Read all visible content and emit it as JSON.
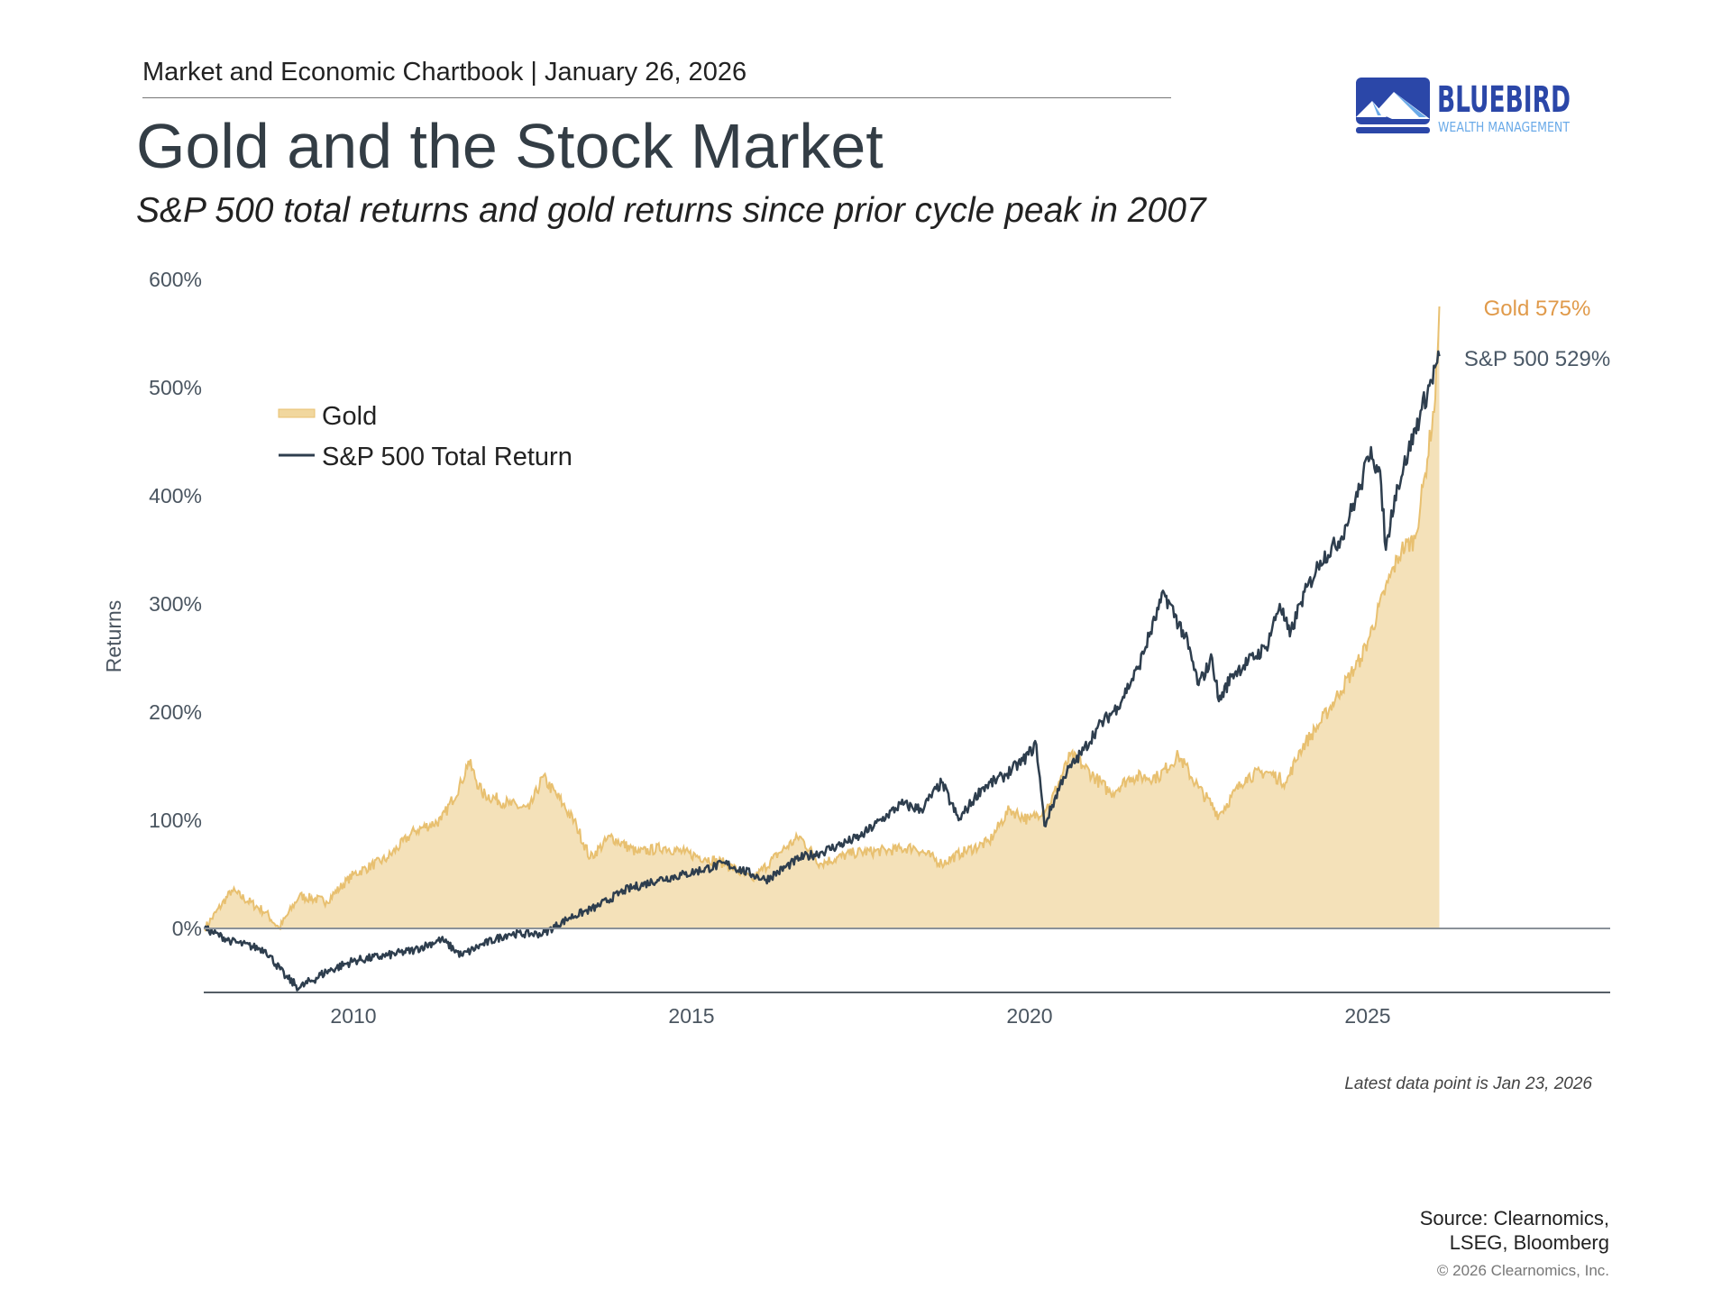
{
  "header": {
    "text": "Market and Economic Chartbook | January 26, 2026"
  },
  "title": "Gold and the Stock Market",
  "subtitle": "S&P 500 total returns and gold returns since prior cycle peak in 2007",
  "logo": {
    "name": "BLUEBIRD",
    "tagline": "WEALTH MANAGEMENT",
    "colors": {
      "primary": "#2b47a8",
      "accent": "#6aaae8"
    }
  },
  "chart_data": {
    "type": "area",
    "ylabel": "Returns",
    "xlabel": "",
    "ylim": [
      -60,
      600
    ],
    "xlim": [
      2007.8,
      2028.3
    ],
    "yticks": [
      "0%",
      "100%",
      "200%",
      "300%",
      "400%",
      "500%",
      "600%"
    ],
    "ytick_values": [
      0,
      100,
      200,
      300,
      400,
      500,
      600
    ],
    "xticks": [
      "2010",
      "2015",
      "2020",
      "2025"
    ],
    "xtick_values": [
      2010,
      2015,
      2020,
      2025
    ],
    "grid": false,
    "legend_position": "top-left",
    "series": [
      {
        "name": "Gold",
        "kind": "area",
        "color": "#e8c070",
        "fill": "#f4e1b9",
        "end_label": "Gold 575%",
        "end_label_color": "#e09a4a",
        "x": [
          2007.8,
          2008.2,
          2008.7,
          2008.9,
          2009.2,
          2009.6,
          2010.0,
          2010.5,
          2010.9,
          2011.3,
          2011.6,
          2011.7,
          2011.9,
          2012.3,
          2012.6,
          2012.8,
          2013.1,
          2013.3,
          2013.5,
          2013.8,
          2014.2,
          2014.6,
          2014.9,
          2015.2,
          2015.5,
          2015.9,
          2016.3,
          2016.6,
          2016.9,
          2017.4,
          2017.9,
          2018.3,
          2018.7,
          2019.0,
          2019.4,
          2019.7,
          2020.0,
          2020.3,
          2020.6,
          2020.8,
          2021.2,
          2021.5,
          2021.9,
          2022.2,
          2022.5,
          2022.8,
          2023.2,
          2023.5,
          2023.8,
          2024.0,
          2024.3,
          2024.6,
          2024.9,
          2025.0,
          2025.3,
          2025.5,
          2025.7,
          2025.85,
          2026.0,
          2026.06
        ],
        "y": [
          0,
          35,
          15,
          0,
          30,
          25,
          50,
          65,
          90,
          100,
          135,
          155,
          125,
          115,
          110,
          140,
          115,
          95,
          65,
          85,
          70,
          75,
          70,
          65,
          60,
          45,
          70,
          85,
          60,
          70,
          72,
          75,
          60,
          70,
          80,
          110,
          100,
          115,
          160,
          150,
          125,
          140,
          140,
          160,
          130,
          105,
          140,
          145,
          135,
          165,
          190,
          220,
          250,
          265,
          320,
          350,
          360,
          420,
          490,
          575
        ]
      },
      {
        "name": "S&P 500 Total Return",
        "kind": "line",
        "color": "#2e3e4e",
        "end_label": "S&P 500 529%",
        "end_label_color": "#4a5866",
        "x": [
          2007.8,
          2008.2,
          2008.7,
          2009.0,
          2009.2,
          2009.6,
          2010.0,
          2010.5,
          2010.9,
          2011.3,
          2011.6,
          2011.9,
          2012.3,
          2012.8,
          2013.2,
          2013.6,
          2014.0,
          2014.5,
          2014.9,
          2015.5,
          2015.9,
          2016.1,
          2016.6,
          2016.9,
          2017.5,
          2017.9,
          2018.1,
          2018.4,
          2018.7,
          2018.95,
          2019.3,
          2019.6,
          2019.9,
          2020.1,
          2020.22,
          2020.5,
          2020.8,
          2021.0,
          2021.3,
          2021.6,
          2021.99,
          2022.3,
          2022.5,
          2022.7,
          2022.8,
          2023.0,
          2023.5,
          2023.7,
          2023.85,
          2024.0,
          2024.3,
          2024.6,
          2024.9,
          2025.05,
          2025.2,
          2025.27,
          2025.4,
          2025.6,
          2025.8,
          2026.06
        ],
        "y": [
          0,
          -12,
          -20,
          -45,
          -55,
          -40,
          -30,
          -25,
          -20,
          -10,
          -25,
          -15,
          -5,
          -5,
          10,
          20,
          35,
          45,
          50,
          60,
          50,
          45,
          65,
          70,
          85,
          105,
          115,
          110,
          135,
          100,
          130,
          140,
          155,
          170,
          95,
          140,
          165,
          185,
          205,
          240,
          310,
          270,
          225,
          250,
          210,
          235,
          260,
          300,
          270,
          300,
          340,
          360,
          410,
          445,
          410,
          350,
          400,
          440,
          480,
          529
        ]
      }
    ]
  },
  "footer": {
    "latest": "Latest data point is Jan 23, 2026",
    "source_line1": "Source: Clearnomics,",
    "source_line2": "LSEG, Bloomberg",
    "copyright": "© 2026 Clearnomics, Inc."
  }
}
